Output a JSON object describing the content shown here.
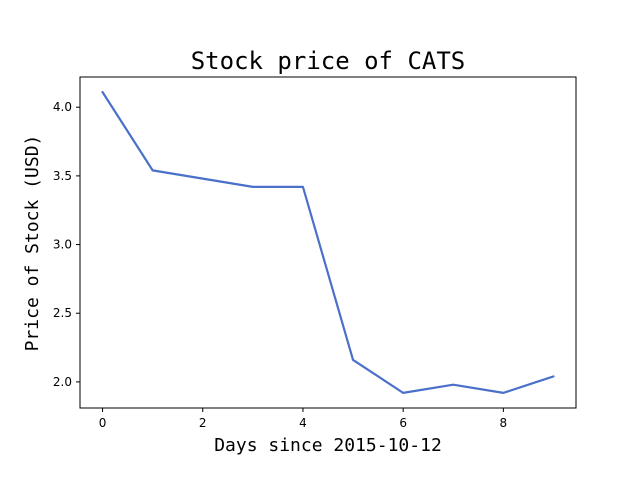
{
  "chart_data": {
    "type": "line",
    "title": "Stock price of CATS",
    "xlabel": "Days since 2015-10-12",
    "ylabel": "Price of Stock (USD)",
    "x": [
      0,
      1,
      2,
      3,
      4,
      5,
      6,
      7,
      8,
      9
    ],
    "series": [
      {
        "values": [
          4.11,
          3.54,
          3.48,
          3.42,
          3.42,
          2.16,
          1.92,
          1.98,
          1.92,
          2.04
        ],
        "color": "#4a70c9"
      }
    ],
    "xlim": [
      -0.45,
      9.45
    ],
    "ylim": [
      1.81,
      4.22
    ],
    "xticks": [
      0,
      2,
      4,
      6,
      8
    ],
    "yticks": [
      2.0,
      2.5,
      3.0,
      3.5,
      4.0
    ],
    "xtick_labels": [
      "0",
      "2",
      "4",
      "6",
      "8"
    ],
    "ytick_labels": [
      "2.0",
      "2.5",
      "3.0",
      "3.5",
      "4.0"
    ],
    "grid": false,
    "legend": "none"
  }
}
